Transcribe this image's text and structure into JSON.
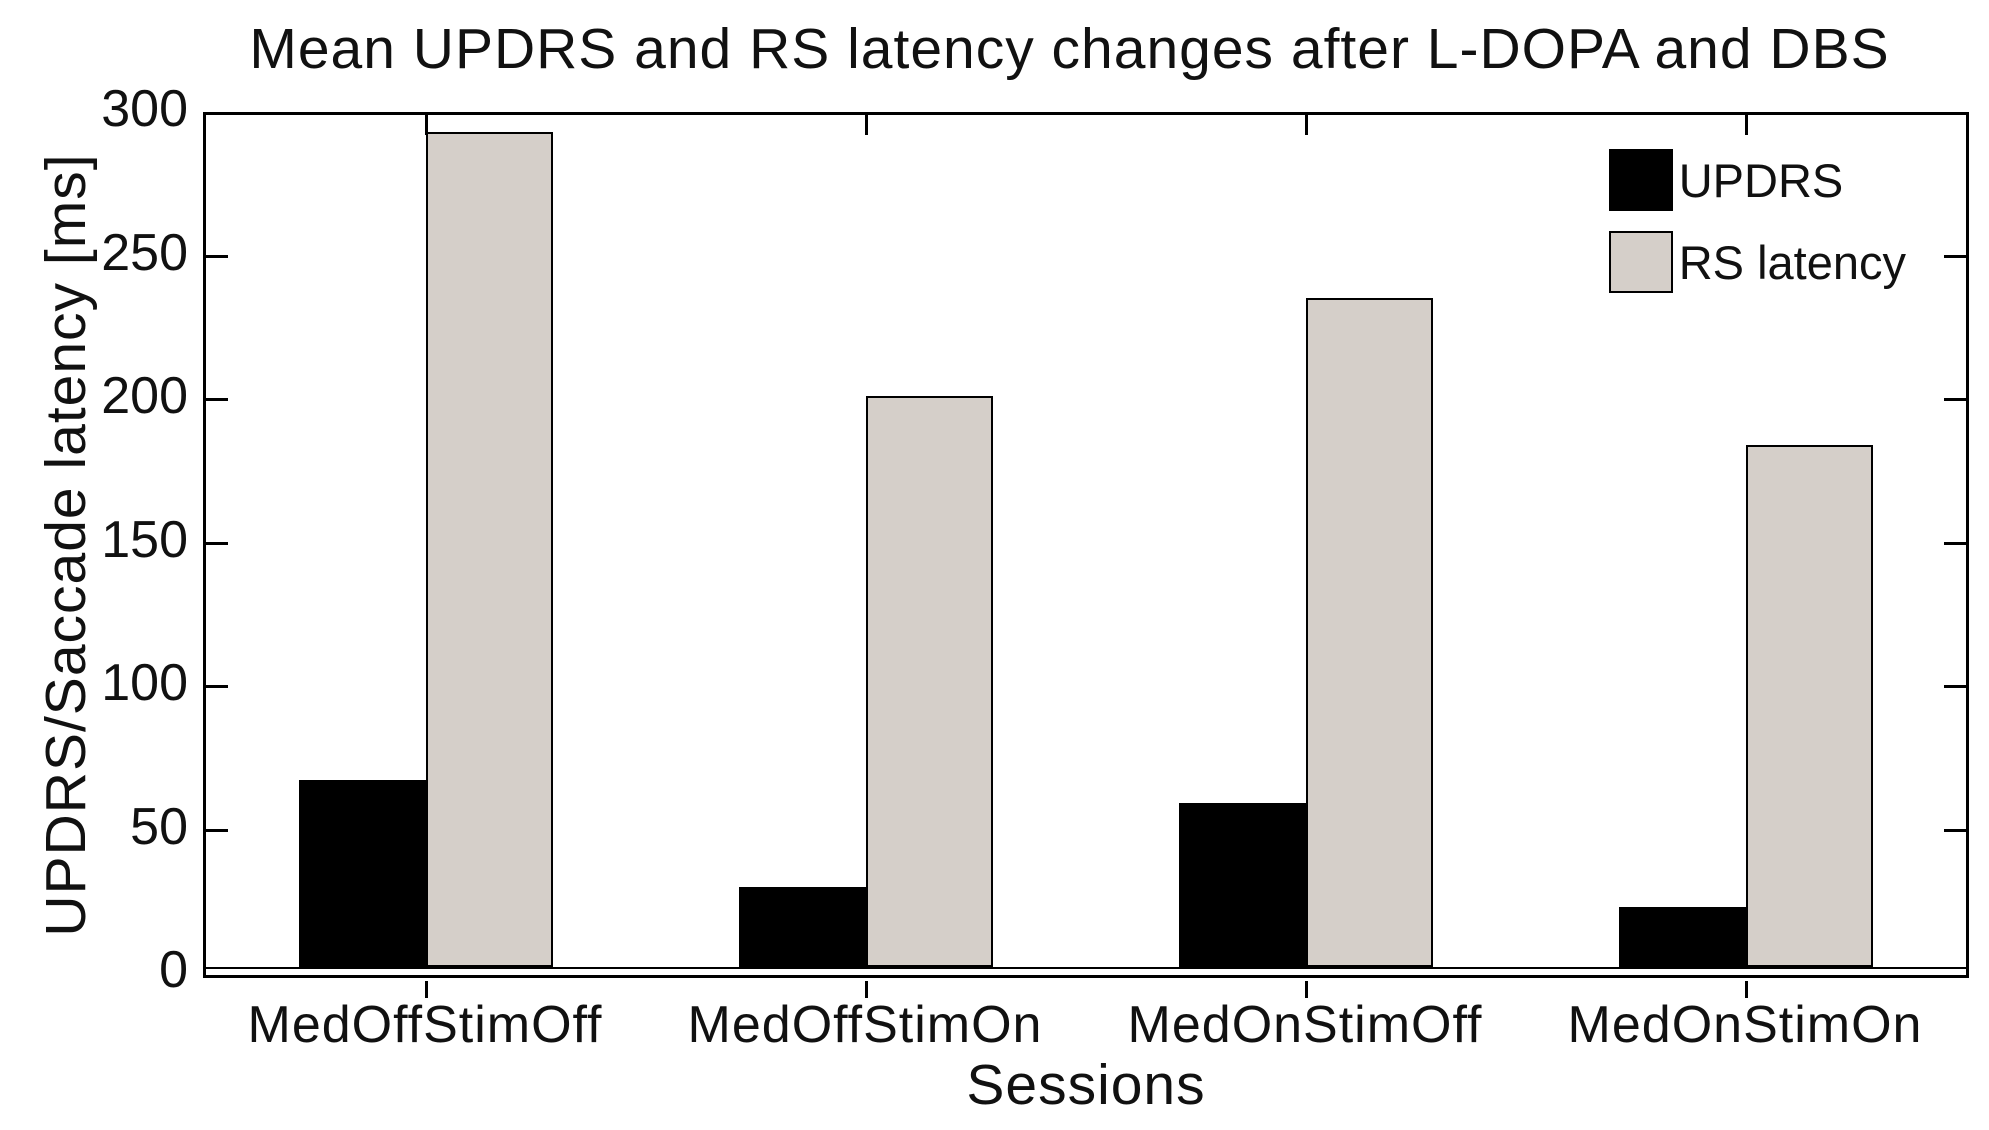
{
  "chart_data": {
    "type": "bar",
    "title": "Mean UPDRS and RS latency changes after L-DOPA and DBS",
    "xlabel": "Sessions",
    "ylabel": "UPDRS/Saccade latency [ms]",
    "categories": [
      "MedOffStimOff",
      "MedOffStimOn",
      "MedOnStimOff",
      "MedOnStimOn"
    ],
    "series": [
      {
        "name": "UPDRS",
        "color": "#000000",
        "values": [
          65,
          28,
          57,
          21
        ]
      },
      {
        "name": "RS latency",
        "color": "#d5cfc9",
        "values": [
          291,
          199,
          233,
          182
        ]
      }
    ],
    "ylim": [
      0,
      300
    ],
    "yticks": [
      50,
      100,
      150,
      200,
      250,
      300
    ],
    "grid": false,
    "legend_position": "top-right",
    "bar_outline_color": "#000000",
    "axis_color": "#000000"
  }
}
